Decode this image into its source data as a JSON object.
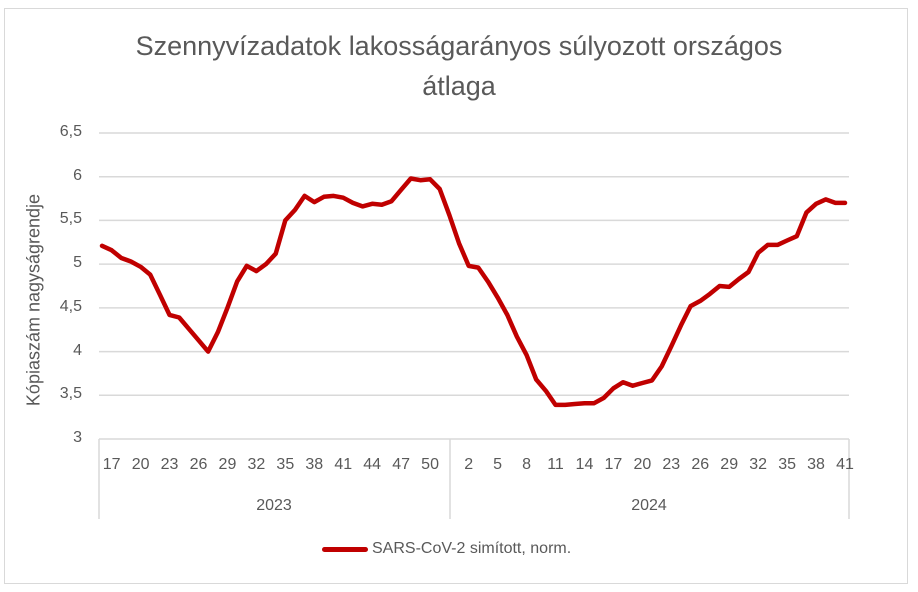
{
  "chart": {
    "title_line1": "Szennyvízadatok lakosságarányos súlyozott országos",
    "title_line2": "átlaga",
    "ylabel": "Kópiaszám nagyságrendje",
    "legend_label": "SARS-CoV-2 simított, norm.",
    "series_color": "#c00000",
    "y_ticks": [
      "6,5",
      "6",
      "5,5",
      "5",
      "4,5",
      "4",
      "3,5",
      "3"
    ],
    "x_ticks_2023": [
      "17",
      "20",
      "23",
      "26",
      "29",
      "32",
      "35",
      "38",
      "41",
      "44",
      "47",
      "50"
    ],
    "x_ticks_2024": [
      "2",
      "5",
      "8",
      "11",
      "14",
      "17",
      "20",
      "23",
      "26",
      "29",
      "32",
      "35",
      "38",
      "41"
    ],
    "year_2023": "2023",
    "year_2024": "2024"
  },
  "chart_data": {
    "type": "line",
    "title": "Szennyvízadatok lakosságarányos súlyozott országos átlaga",
    "xlabel": "",
    "ylabel": "Kópiaszám nagyságrendje",
    "ylim": [
      3,
      6.5
    ],
    "y_ticks": [
      3,
      3.5,
      4,
      4.5,
      5,
      5.5,
      6,
      6.5
    ],
    "grid": true,
    "legend_position": "bottom",
    "x_groups": [
      {
        "year": "2023",
        "weeks": [
          16,
          17,
          18,
          19,
          20,
          21,
          22,
          23,
          24,
          25,
          26,
          27,
          28,
          29,
          30,
          31,
          32,
          33,
          34,
          35,
          36,
          37,
          38,
          39,
          40,
          41,
          42,
          43,
          44,
          45,
          46,
          47,
          48,
          49,
          50,
          51,
          52
        ]
      },
      {
        "year": "2024",
        "weeks": [
          1,
          2,
          3,
          4,
          5,
          6,
          7,
          8,
          9,
          10,
          11,
          12,
          13,
          14,
          15,
          16,
          17,
          18,
          19,
          20,
          21,
          22,
          23,
          24,
          25,
          26,
          27,
          28,
          29,
          30,
          31,
          32,
          33,
          34,
          35,
          36,
          37,
          38,
          39,
          40,
          41
        ]
      }
    ],
    "series": [
      {
        "name": "SARS-CoV-2 simított, norm.",
        "color": "#c00000",
        "values_2023": [
          5.21,
          5.16,
          5.07,
          5.03,
          4.97,
          4.88,
          4.65,
          4.42,
          4.39,
          4.26,
          4.13,
          4.0,
          4.22,
          4.5,
          4.8,
          4.98,
          4.92,
          5.0,
          5.12,
          5.5,
          5.62,
          5.78,
          5.71,
          5.77,
          5.78,
          5.76,
          5.7,
          5.66,
          5.69,
          5.68,
          5.72,
          5.85,
          5.98,
          5.96,
          5.97,
          5.86,
          5.56
        ],
        "values_2024": [
          5.24,
          4.98,
          4.96,
          4.8,
          4.62,
          4.42,
          4.17,
          3.96,
          3.68,
          3.55,
          3.39,
          3.39,
          3.4,
          3.41,
          3.41,
          3.47,
          3.58,
          3.65,
          3.61,
          3.64,
          3.67,
          3.83,
          4.06,
          4.3,
          4.52,
          4.58,
          4.66,
          4.75,
          4.74,
          4.83,
          4.91,
          5.13,
          5.22,
          5.22,
          5.27,
          5.32,
          5.59,
          5.69,
          5.74,
          5.7,
          5.7
        ]
      }
    ]
  }
}
